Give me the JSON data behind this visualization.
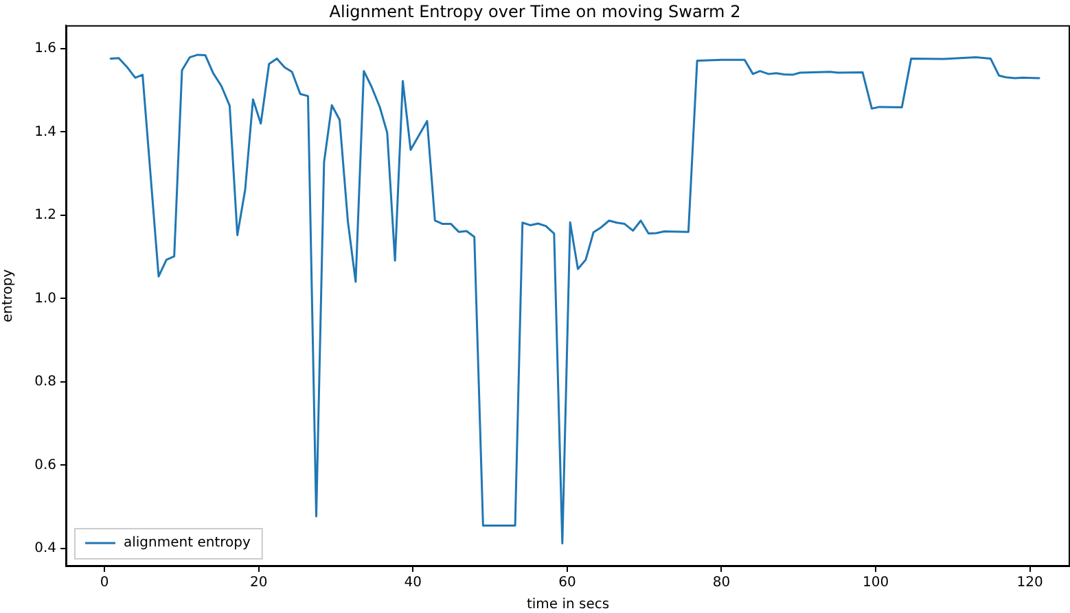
{
  "chart_data": {
    "type": "line",
    "title": "Alignment Entropy over Time on moving Swarm 2",
    "xlabel": "time in secs",
    "ylabel": "entropy",
    "x": [
      0.8,
      1.85,
      2.86,
      3.99,
      4.94,
      7.02,
      8.03,
      9.04,
      10.05,
      11.06,
      12.07,
      13.08,
      14.09,
      15.16,
      16.23,
      17.23,
      18.24,
      19.26,
      20.27,
      21.34,
      22.35,
      23.36,
      24.31,
      25.38,
      26.39,
      27.46,
      28.47,
      29.48,
      30.49,
      31.56,
      32.57,
      33.63,
      34.64,
      35.71,
      36.66,
      37.67,
      38.68,
      39.7,
      41.84,
      42.85,
      43.86,
      44.93,
      45.94,
      46.95,
      47.96,
      49.09,
      53.25,
      54.2,
      55.2,
      56.22,
      57.23,
      58.3,
      59.37,
      60.38,
      61.39,
      62.4,
      63.41,
      64.42,
      65.43,
      66.44,
      67.45,
      68.53,
      69.54,
      70.55,
      71.56,
      72.57,
      75.72,
      76.85,
      80.06,
      83.0,
      84.08,
      85.0,
      86.1,
      87.1,
      88.1,
      89.2,
      90.2,
      94.1,
      95.1,
      98.3,
      99.5,
      100.5,
      103.4,
      104.6,
      108.8,
      113.0,
      114.9,
      116.0,
      116.9,
      118.1,
      119.0,
      121.2
    ],
    "series": [
      {
        "name": "alignment entropy",
        "color": "#1f77b4",
        "values": [
          1.576,
          1.577,
          1.557,
          1.53,
          1.537,
          1.053,
          1.093,
          1.101,
          1.548,
          1.579,
          1.585,
          1.584,
          1.541,
          1.51,
          1.463,
          1.152,
          1.261,
          1.478,
          1.42,
          1.563,
          1.576,
          1.555,
          1.544,
          1.491,
          1.486,
          0.477,
          1.327,
          1.464,
          1.429,
          1.185,
          1.04,
          1.546,
          1.508,
          1.459,
          1.398,
          1.091,
          1.522,
          1.357,
          1.426,
          1.187,
          1.179,
          1.179,
          1.16,
          1.162,
          1.148,
          0.455,
          0.455,
          1.182,
          1.176,
          1.18,
          1.174,
          1.156,
          0.412,
          1.183,
          1.071,
          1.093,
          1.159,
          1.171,
          1.187,
          1.182,
          1.179,
          1.163,
          1.187,
          1.156,
          1.157,
          1.161,
          1.16,
          1.571,
          1.573,
          1.573,
          1.539,
          1.546,
          1.539,
          1.541,
          1.538,
          1.537,
          1.542,
          1.544,
          1.542,
          1.543,
          1.456,
          1.46,
          1.459,
          1.576,
          1.575,
          1.579,
          1.576,
          1.535,
          1.531,
          1.529,
          1.53,
          1.529
        ]
      }
    ],
    "xlim": [
      -5,
      125.2
    ],
    "ylim": [
      0.357,
      1.656
    ],
    "xticks": [
      0,
      20,
      40,
      60,
      80,
      100,
      120
    ],
    "yticks": [
      0.4,
      0.6,
      0.8,
      {
        "value": 1,
        "label": "1.0"
      },
      1.2,
      1.4,
      1.6
    ],
    "grid": false,
    "legend": "bottom left",
    "marker": "none",
    "line_style": "solid"
  }
}
